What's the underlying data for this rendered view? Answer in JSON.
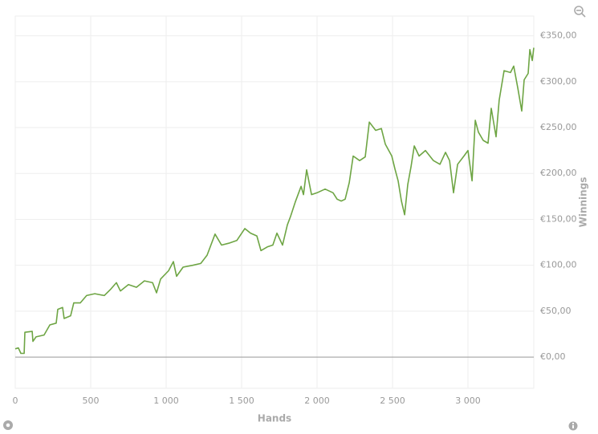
{
  "chart_data": {
    "type": "line",
    "x_label": "Hands",
    "y_label": "Winnings",
    "x": [
      0,
      21,
      37,
      59,
      64,
      112,
      117,
      138,
      191,
      229,
      271,
      282,
      314,
      324,
      367,
      388,
      431,
      473,
      527,
      590,
      633,
      670,
      697,
      750,
      803,
      856,
      910,
      936,
      963,
      1016,
      1048,
      1069,
      1112,
      1176,
      1229,
      1271,
      1324,
      1367,
      1415,
      1468,
      1521,
      1559,
      1601,
      1628,
      1670,
      1707,
      1734,
      1771,
      1803,
      1824,
      1856,
      1894,
      1910,
      1931,
      1963,
      2000,
      2053,
      2106,
      2133,
      2160,
      2186,
      2213,
      2239,
      2282,
      2319,
      2346,
      2388,
      2426,
      2452,
      2495,
      2516,
      2537,
      2559,
      2580,
      2601,
      2622,
      2644,
      2676,
      2718,
      2771,
      2814,
      2851,
      2878,
      2904,
      2931,
      2973,
      3000,
      3027,
      3048,
      3069,
      3101,
      3133,
      3154,
      3186,
      3207,
      3239,
      3282,
      3303,
      3330,
      3356,
      3372,
      3399,
      3410,
      3426,
      3436
    ],
    "series": [
      {
        "name": "Winnings",
        "color": "#6ea544",
        "values": [
          9,
          10,
          4,
          4,
          27,
          28,
          17,
          22,
          24,
          35,
          37,
          52,
          54,
          42,
          45,
          59,
          59,
          67,
          69,
          67,
          74,
          81,
          72,
          79,
          76,
          83,
          81,
          70,
          85,
          94,
          104,
          88,
          98,
          100,
          102,
          111,
          134,
          122,
          124,
          127,
          140,
          135,
          132,
          116,
          120,
          122,
          135,
          122,
          144,
          153,
          169,
          186,
          177,
          204,
          177,
          179,
          183,
          179,
          172,
          170,
          172,
          190,
          219,
          214,
          218,
          256,
          247,
          249,
          232,
          219,
          205,
          192,
          170,
          155,
          188,
          207,
          230,
          219,
          225,
          214,
          210,
          223,
          214,
          179,
          210,
          219,
          225,
          192,
          258,
          245,
          236,
          233,
          271,
          240,
          280,
          312,
          310,
          317,
          293,
          268,
          302,
          309,
          335,
          323,
          337
        ]
      }
    ],
    "xlim": [
      0,
      3436
    ],
    "xticks": [
      0,
      500,
      {
        "value": 1000,
        "label": "1 000"
      },
      {
        "value": 1500,
        "label": "1 500"
      },
      {
        "value": 2000,
        "label": "2 000"
      },
      {
        "value": 2500,
        "label": "2 500"
      },
      {
        "value": 3000,
        "label": "3 000"
      }
    ],
    "ylim": [
      -34,
      371.5
    ],
    "yticks": [
      {
        "value": 0,
        "label": "€0,00"
      },
      {
        "value": 50,
        "label": "€50,00"
      },
      {
        "value": 100,
        "label": "€100,00"
      },
      {
        "value": 150,
        "label": "€150,00"
      },
      {
        "value": 200,
        "label": "€200,00"
      },
      {
        "value": 250,
        "label": "€250,00"
      },
      {
        "value": 300,
        "label": "€300,00"
      },
      {
        "value": 350,
        "label": "€350,00"
      }
    ],
    "grid": true
  }
}
